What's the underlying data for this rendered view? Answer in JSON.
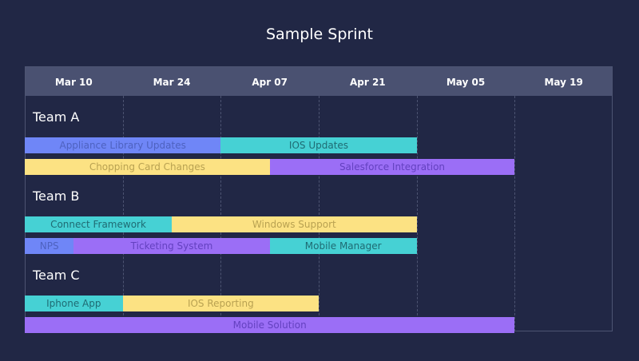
{
  "chart_data": {
    "type": "gantt",
    "title": "Sample Sprint",
    "x_axis_ticks": [
      "Mar 10",
      "Mar 24",
      "Apr 07",
      "Apr 21",
      "May 05",
      "May 19"
    ],
    "x_range": [
      "2024-03-03",
      "2024-05-26"
    ],
    "groups": [
      {
        "name": "Team A",
        "rows": [
          [
            {
              "task": "Appliance Library Updates",
              "start": "2024-03-03",
              "end": "2024-03-31",
              "color": "#6f86f7",
              "text_color": "#4e62c0"
            },
            {
              "task": "IOS Updates",
              "start": "2024-03-31",
              "end": "2024-04-28",
              "color": "#46d1d4",
              "text_color": "#1f6b73"
            }
          ],
          [
            {
              "task": "Chopping Card Changes",
              "start": "2024-03-03",
              "end": "2024-04-07",
              "color": "#fce283",
              "text_color": "#b9a252"
            },
            {
              "task": "Salesforce Integration",
              "start": "2024-04-07",
              "end": "2024-05-12",
              "color": "#9b6ef6",
              "text_color": "#6441c0"
            }
          ]
        ]
      },
      {
        "name": "Team B",
        "rows": [
          [
            {
              "task": "Connect Framework",
              "start": "2024-03-03",
              "end": "2024-03-24",
              "color": "#46d1d4",
              "text_color": "#1f6b73"
            },
            {
              "task": "Windows Support",
              "start": "2024-03-24",
              "end": "2024-04-28",
              "color": "#fce283",
              "text_color": "#b9a252"
            }
          ],
          [
            {
              "task": "NPS",
              "start": "2024-03-03",
              "end": "2024-03-10",
              "color": "#6f86f7",
              "text_color": "#4e62c0"
            },
            {
              "task": "Ticketing System",
              "start": "2024-03-10",
              "end": "2024-04-07",
              "color": "#9b6ef6",
              "text_color": "#6441c0"
            },
            {
              "task": "Mobile Manager",
              "start": "2024-04-07",
              "end": "2024-04-28",
              "color": "#46d1d4",
              "text_color": "#1f6b73"
            }
          ]
        ]
      },
      {
        "name": "Team C",
        "rows": [
          [
            {
              "task": "Iphone App",
              "start": "2024-03-03",
              "end": "2024-03-17",
              "color": "#46d1d4",
              "text_color": "#1f6b73"
            },
            {
              "task": "IOS Reporting",
              "start": "2024-03-17",
              "end": "2024-04-14",
              "color": "#fce283",
              "text_color": "#b9a252"
            }
          ],
          [
            {
              "task": "Mobile Solution",
              "start": "2024-03-03",
              "end": "2024-05-12",
              "color": "#9b6ef6",
              "text_color": "#6441c0"
            }
          ]
        ]
      }
    ]
  }
}
